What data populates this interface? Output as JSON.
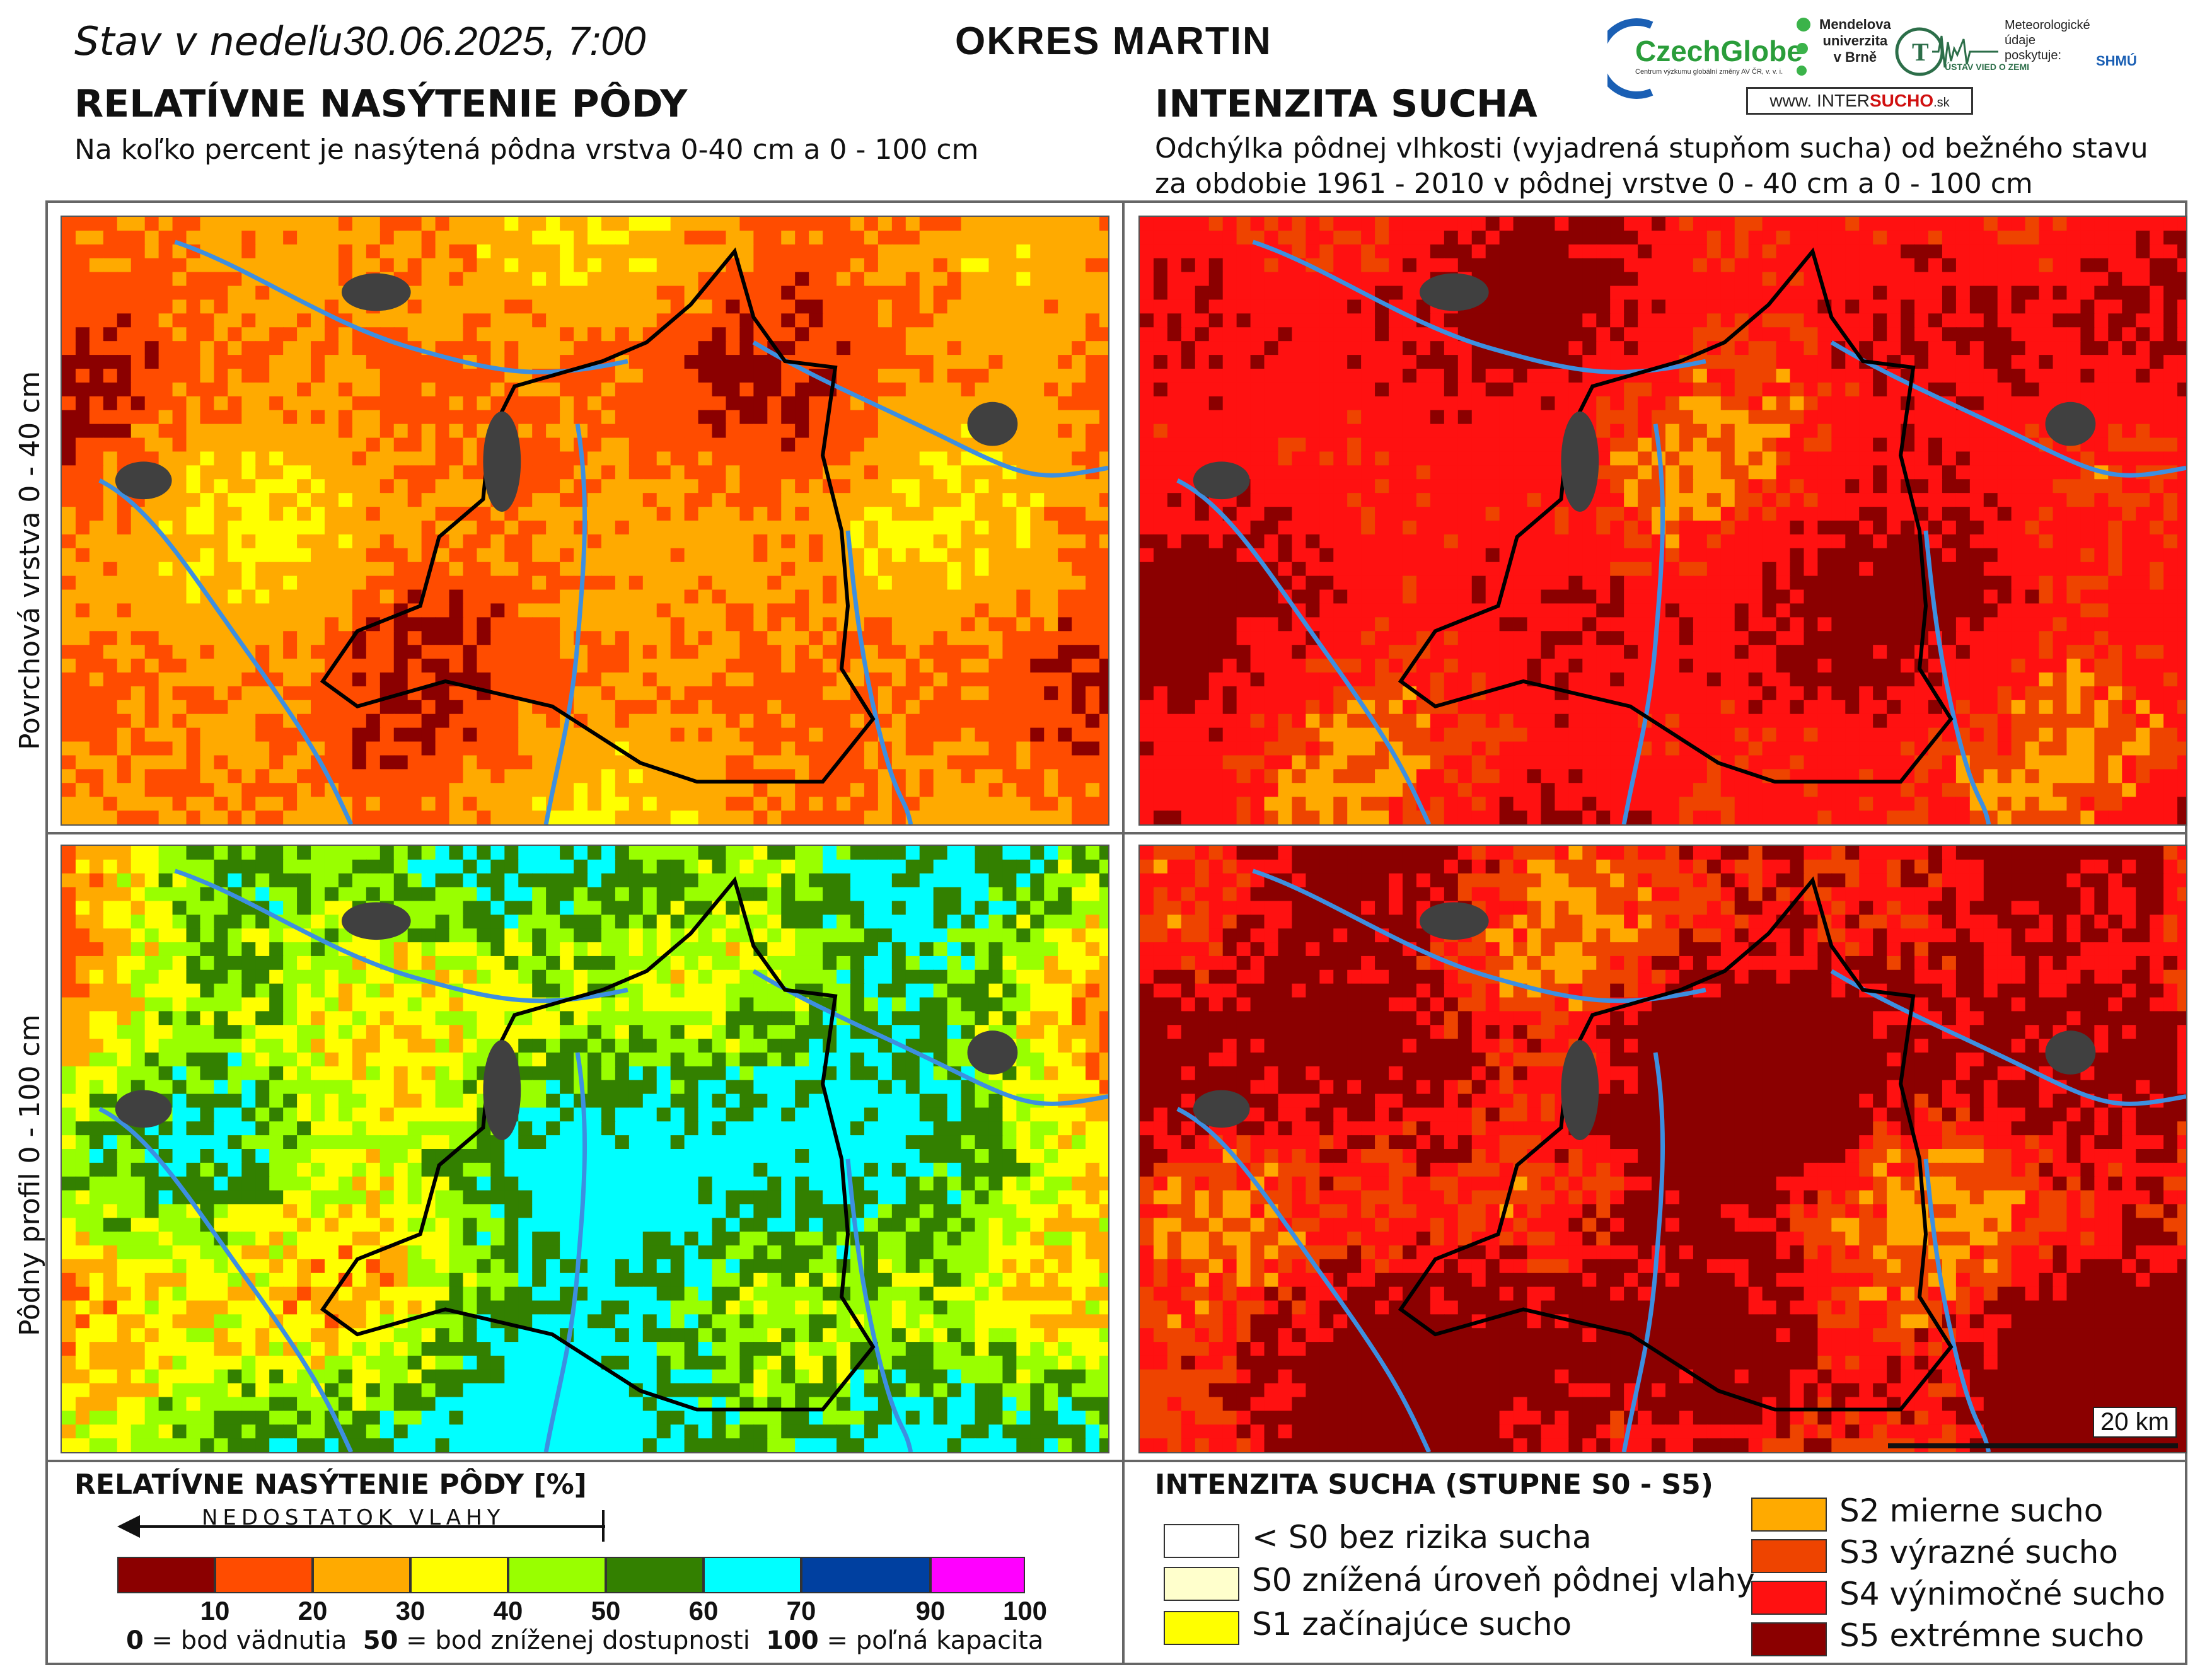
{
  "header": {
    "date_prefix": "Stav v nedeľu",
    "date_value": "30.06.2025, 7:00",
    "district": "OKRES  MARTIN"
  },
  "logos": {
    "czechglobe": "CzechGlobe",
    "czechglobe_sub": "Centrum výzkumu globální změny AV ČR, v. v. i.",
    "mendel_line1": "Mendelova",
    "mendel_line2": "univerzita",
    "mendel_line3": "v Brně",
    "ustav": "ÚSTAV VIED O ZEMI",
    "meteo_line1": "Meteorologické",
    "meteo_line2": "údaje",
    "meteo_line3": "poskytuje:",
    "shmu": "SHMÚ",
    "intersucho_prefix": "www. INTER",
    "intersucho_mid": "SUCHO",
    "intersucho_suffix": ".sk"
  },
  "left_section": {
    "title": "RELATÍVNE NASÝTENIE PÔDY",
    "subtitle": "Na koľko percent je nasýtená pôdna vrstva 0-40 cm a 0 - 100 cm"
  },
  "right_section": {
    "title": "INTENZITA SUCHA",
    "subtitle_line1": "Odchýlka pôdnej vlhkosti (vyjadrená stupňom sucha) od bežného stavu",
    "subtitle_line2": "za obdobie 1961 - 2010 v pôdnej vrstve 0 - 40 cm a 0 - 100 cm"
  },
  "row_labels": {
    "top": "Povrchová vrstva 0 - 40 cm",
    "bottom": "Pôdny profil 0 - 100 cm"
  },
  "scale": "20 km",
  "legend_saturation": {
    "title": "RELATÍVNE NASÝTENIE PÔDY [%]",
    "arrow_label": "NEDOSTATOK VLAHY",
    "colors": [
      "#8b0000",
      "#ff4c00",
      "#ffaa00",
      "#ffff00",
      "#99ff00",
      "#338000",
      "#00ffff",
      "#0040a0",
      "#ff00ff"
    ],
    "ticks": [
      "10",
      "20",
      "30",
      "40",
      "50",
      "60",
      "70",
      "90",
      "100"
    ],
    "note_0_value": "0",
    "note_0_text": " = bod vädnutia",
    "note_50_value": "50",
    "note_50_text": " = bod zníženej dostupnosti",
    "note_100_value": "100",
    "note_100_text": " = poľná kapacita"
  },
  "legend_drought": {
    "title": "INTENZITA SUCHA (STUPNE S0 - S5)",
    "items": [
      {
        "label": "< S0 bez rizika sucha",
        "color": "#ffffff"
      },
      {
        "label": "S0 znížená úroveň pôdnej vlahy",
        "color": "#ffffcc"
      },
      {
        "label": "S1 začínajúce sucho",
        "color": "#ffff00"
      },
      {
        "label": "S2 mierne sucho",
        "color": "#ffaa00"
      },
      {
        "label": "S3 výrazné sucho",
        "color": "#ee4400"
      },
      {
        "label": "S4 výnimočné sucho",
        "color": "#ff1111"
      },
      {
        "label": "S5 extrémne sucho",
        "color": "#8b0000"
      }
    ]
  }
}
